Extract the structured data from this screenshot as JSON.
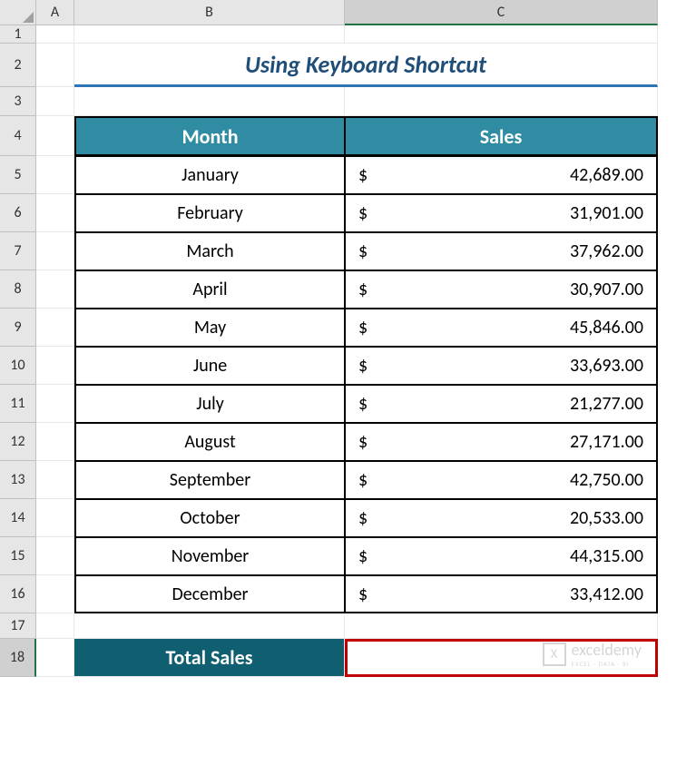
{
  "columns": [
    "A",
    "B",
    "C"
  ],
  "rows": [
    "1",
    "2",
    "3",
    "4",
    "5",
    "6",
    "7",
    "8",
    "9",
    "10",
    "11",
    "12",
    "13",
    "14",
    "15",
    "16",
    "17",
    "18"
  ],
  "active_col_index": 2,
  "active_row_index": 17,
  "title": "Using Keyboard Shortcut",
  "table": {
    "header_month": "Month",
    "header_sales": "Sales",
    "header_bg": "#2f8ca3",
    "header_fg": "#ffffff",
    "currency_symbol": "$",
    "data": [
      {
        "month": "January",
        "sales": "42,689.00"
      },
      {
        "month": "February",
        "sales": "31,901.00"
      },
      {
        "month": "March",
        "sales": "37,962.00"
      },
      {
        "month": "April",
        "sales": "30,907.00"
      },
      {
        "month": "May",
        "sales": "45,846.00"
      },
      {
        "month": "June",
        "sales": "33,693.00"
      },
      {
        "month": "July",
        "sales": "21,277.00"
      },
      {
        "month": "August",
        "sales": "27,171.00"
      },
      {
        "month": "September",
        "sales": "42,750.00"
      },
      {
        "month": "October",
        "sales": "20,533.00"
      },
      {
        "month": "November",
        "sales": "44,315.00"
      },
      {
        "month": "December",
        "sales": "33,412.00"
      }
    ]
  },
  "total": {
    "label": "Total Sales",
    "label_bg": "#0f5f71",
    "value": "",
    "border_color": "#c00000"
  },
  "watermark": {
    "brand": "exceldemy",
    "tagline": "EXCEL · DATA · BI",
    "logo_letter": "X"
  },
  "style": {
    "title_color": "#1f4e79",
    "title_underline": "#2e75b6",
    "grid_header_bg": "#e6e6e6",
    "active_highlight": "#217346"
  }
}
